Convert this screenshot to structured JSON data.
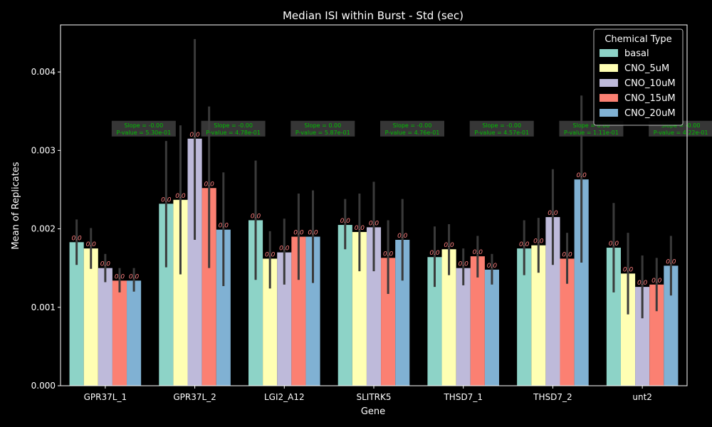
{
  "chart_data": {
    "type": "bar",
    "title": "Median ISI within Burst - Std (sec)",
    "xlabel": "Gene",
    "ylabel": "Mean of Replicates",
    "ylim": [
      0,
      0.0046
    ],
    "yticks": [
      "0.000",
      "0.001",
      "0.002",
      "0.003",
      "0.004"
    ],
    "ytick_values": [
      0,
      0.001,
      0.002,
      0.003,
      0.004
    ],
    "categories": [
      "GPR37L_1",
      "GPR37L_2",
      "LGI2_A12",
      "SLITRK5",
      "THSD7_1",
      "THSD7_2",
      "unt2"
    ],
    "legend": {
      "title": "Chemical Type",
      "position": "top-right"
    },
    "bar_label": "0.0",
    "series": [
      {
        "name": "basal",
        "color": "#8dd3c7",
        "values": [
          0.00183,
          0.00232,
          0.00211,
          0.00205,
          0.00164,
          0.00175,
          0.00176
        ],
        "err_low": [
          0.00154,
          0.00151,
          0.00135,
          0.00174,
          0.00126,
          0.00141,
          0.00119
        ],
        "err_high": [
          0.00212,
          0.00312,
          0.00287,
          0.00238,
          0.00203,
          0.00211,
          0.00233
        ]
      },
      {
        "name": "CNO_5uM",
        "color": "#ffffb3",
        "values": [
          0.00175,
          0.00237,
          0.00162,
          0.00196,
          0.00174,
          0.00179,
          0.00143
        ],
        "err_low": [
          0.00149,
          0.00142,
          0.00124,
          0.00146,
          0.00141,
          0.00144,
          0.00091
        ],
        "err_high": [
          0.00201,
          0.00332,
          0.00197,
          0.00245,
          0.00206,
          0.00214,
          0.00195
        ]
      },
      {
        "name": "CNO_10uM",
        "color": "#bebada",
        "values": [
          0.0015,
          0.00315,
          0.0017,
          0.00202,
          0.0015,
          0.00215,
          0.00126
        ],
        "err_low": [
          0.00132,
          0.00186,
          0.00129,
          0.00146,
          0.00128,
          0.00154,
          0.00086
        ],
        "err_high": [
          0.00168,
          0.00442,
          0.00213,
          0.0026,
          0.00175,
          0.00276,
          0.00166
        ]
      },
      {
        "name": "CNO_15uM",
        "color": "#fb8072",
        "values": [
          0.00134,
          0.00252,
          0.0019,
          0.00163,
          0.00165,
          0.00162,
          0.00129
        ],
        "err_low": [
          0.00119,
          0.0015,
          0.00135,
          0.00117,
          0.00138,
          0.0013,
          0.00095
        ],
        "err_high": [
          0.0015,
          0.00356,
          0.00245,
          0.00211,
          0.00191,
          0.00195,
          0.00163
        ]
      },
      {
        "name": "CNO_20uM",
        "color": "#80b1d3",
        "values": [
          0.00134,
          0.00199,
          0.0019,
          0.00186,
          0.00148,
          0.00263,
          0.00153
        ],
        "err_low": [
          0.0012,
          0.00127,
          0.00131,
          0.00134,
          0.00129,
          0.00157,
          0.00115
        ],
        "err_high": [
          0.0015,
          0.00272,
          0.00249,
          0.00238,
          0.00168,
          0.0037,
          0.00191
        ]
      }
    ],
    "annotations": [
      {
        "category": "GPR37L_1",
        "slope": "Slope = -0.00",
        "pvalue": "P-value = 5.30e-01"
      },
      {
        "category": "GPR37L_2",
        "slope": "Slope = -0.00",
        "pvalue": "P-value = 4.78e-01"
      },
      {
        "category": "LGI2_A12",
        "slope": "Slope = 0.00",
        "pvalue": "P-value = 5.87e-01"
      },
      {
        "category": "SLITRK5",
        "slope": "Slope = -0.00",
        "pvalue": "P-value = 4.76e-01"
      },
      {
        "category": "THSD7_1",
        "slope": "Slope = -0.00",
        "pvalue": "P-value = 4.57e-01"
      },
      {
        "category": "THSD7_2",
        "slope": "Slope = 0.00",
        "pvalue": "P-value = 1.11e-01"
      },
      {
        "category": "unt2",
        "slope": "Slope = -0.00",
        "pvalue": "P-value = 4.22e-01"
      }
    ],
    "colors": {
      "background": "#000000",
      "text": "#ffffff",
      "errorbar": "#3a3a3a",
      "annotation_text": "#00c000",
      "annotation_bg": "#404040",
      "bar_label": "#ff8080"
    }
  }
}
